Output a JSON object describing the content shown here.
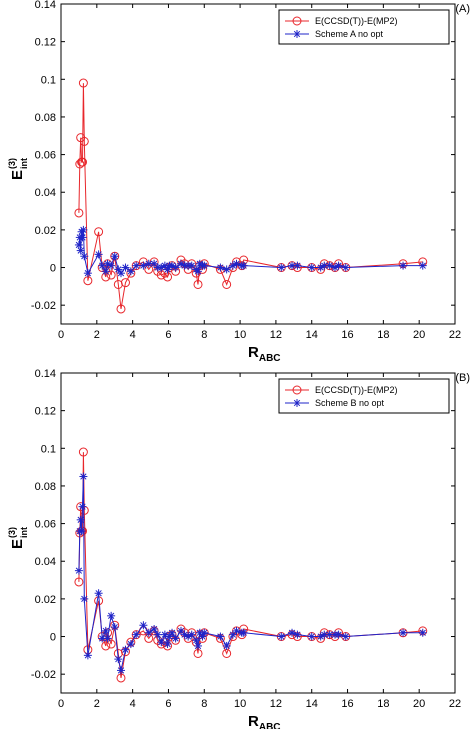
{
  "chart_data": [
    {
      "type": "line",
      "panel_label": "(A)",
      "xlabel": "R",
      "xlabel_sub": "ABC",
      "ylabel": "E",
      "ylabel_sup": "(3)",
      "ylabel_sub": "int",
      "xlim": [
        0,
        22
      ],
      "ylim": [
        -0.03,
        0.14
      ],
      "xticks": [
        0,
        2,
        4,
        6,
        8,
        10,
        12,
        14,
        16,
        18,
        20,
        22
      ],
      "yticks": [
        -0.02,
        0,
        0.02,
        0.04,
        0.06,
        0.08,
        0.1,
        0.12,
        0.14
      ],
      "xtick_labels": [
        "0",
        "2",
        "4",
        "6",
        "8",
        "10",
        "12",
        "14",
        "16",
        "18",
        "20",
        "22"
      ],
      "ytick_labels": [
        "-0.02",
        "0",
        "0.02",
        "0.04",
        "0.06",
        "0.08",
        "0.1",
        "0.12",
        "0.14"
      ],
      "grid": false,
      "legend_position": "top-right",
      "series": [
        {
          "name": "E(CCSD(T))-E(MP2)",
          "color": "#e8262b",
          "marker": "circle",
          "x": [
            1.0,
            1.05,
            1.1,
            1.15,
            1.2,
            1.25,
            1.3,
            1.5,
            2.1,
            2.3,
            2.5,
            2.6,
            2.8,
            3.0,
            3.2,
            3.35,
            3.6,
            3.9,
            4.2,
            4.6,
            4.9,
            5.2,
            5.4,
            5.6,
            5.8,
            5.95,
            6.05,
            6.2,
            6.4,
            6.7,
            6.9,
            7.1,
            7.3,
            7.55,
            7.65,
            7.75,
            7.9,
            8.0,
            8.9,
            9.25,
            9.6,
            9.8,
            10.1,
            10.2,
            12.3,
            12.9,
            13.2,
            14.0,
            14.5,
            14.7,
            15.0,
            15.3,
            15.5,
            15.9,
            19.1,
            20.2
          ],
          "y": [
            0.029,
            0.055,
            0.069,
            0.056,
            0.056,
            0.098,
            0.067,
            -0.007,
            0.019,
            0.0,
            -0.005,
            0.002,
            -0.004,
            0.006,
            -0.009,
            -0.022,
            -0.008,
            -0.003,
            0.001,
            0.003,
            -0.001,
            0.003,
            -0.002,
            -0.004,
            -0.003,
            -0.005,
            0.0,
            0.001,
            -0.002,
            0.004,
            0.002,
            -0.001,
            0.002,
            -0.003,
            -0.009,
            0.001,
            -0.001,
            0.002,
            -0.001,
            -0.009,
            0.0,
            0.003,
            0.001,
            0.004,
            0.0,
            0.001,
            0.0,
            0.0,
            -0.001,
            0.002,
            0.001,
            0.0,
            0.002,
            0.0,
            0.002,
            0.003
          ]
        },
        {
          "name": "Scheme A no opt",
          "color": "#1f24c8",
          "marker": "asterisk",
          "x": [
            1.0,
            1.05,
            1.1,
            1.15,
            1.2,
            1.25,
            1.3,
            1.5,
            2.1,
            2.3,
            2.5,
            2.6,
            2.8,
            3.0,
            3.2,
            3.35,
            3.6,
            3.9,
            4.2,
            4.6,
            4.9,
            5.2,
            5.4,
            5.6,
            5.8,
            5.95,
            6.05,
            6.2,
            6.4,
            6.7,
            6.9,
            7.1,
            7.3,
            7.55,
            7.65,
            7.75,
            7.9,
            8.0,
            8.9,
            9.25,
            9.6,
            9.8,
            10.1,
            10.2,
            12.3,
            12.9,
            13.2,
            14.0,
            14.5,
            14.7,
            15.0,
            15.3,
            15.5,
            15.9,
            19.1,
            20.2
          ],
          "y": [
            0.012,
            0.016,
            0.009,
            0.019,
            0.016,
            0.02,
            0.006,
            -0.003,
            0.007,
            0.001,
            -0.002,
            0.002,
            0.001,
            0.006,
            -0.001,
            -0.003,
            0.0,
            -0.002,
            0.001,
            0.001,
            0.002,
            0.002,
            0.0,
            0.0,
            0.001,
            -0.001,
            0.001,
            0.001,
            0.0,
            0.002,
            0.001,
            0.001,
            0.001,
            -0.001,
            -0.002,
            0.002,
            0.001,
            0.001,
            0.0,
            -0.001,
            0.001,
            0.002,
            0.001,
            0.001,
            0.0,
            0.001,
            0.001,
            0.0,
            0.0,
            0.001,
            0.001,
            0.0,
            0.001,
            0.0,
            0.001,
            0.001
          ]
        }
      ]
    },
    {
      "type": "line",
      "panel_label": "(B)",
      "xlabel": "R",
      "xlabel_sub": "ABC",
      "ylabel": "E",
      "ylabel_sup": "(3)",
      "ylabel_sub": "int",
      "xlim": [
        0,
        22
      ],
      "ylim": [
        -0.03,
        0.14
      ],
      "xticks": [
        0,
        2,
        4,
        6,
        8,
        10,
        12,
        14,
        16,
        18,
        20,
        22
      ],
      "yticks": [
        -0.02,
        0,
        0.02,
        0.04,
        0.06,
        0.08,
        0.1,
        0.12,
        0.14
      ],
      "xtick_labels": [
        "0",
        "2",
        "4",
        "6",
        "8",
        "10",
        "12",
        "14",
        "16",
        "18",
        "20",
        "22"
      ],
      "ytick_labels": [
        "-0.02",
        "0",
        "0.02",
        "0.04",
        "0.06",
        "0.08",
        "0.1",
        "0.12",
        "0.14"
      ],
      "grid": false,
      "legend_position": "top-right",
      "series": [
        {
          "name": "E(CCSD(T))-E(MP2)",
          "color": "#e8262b",
          "marker": "circle",
          "x": [
            1.0,
            1.05,
            1.1,
            1.15,
            1.2,
            1.25,
            1.3,
            1.5,
            2.1,
            2.3,
            2.5,
            2.6,
            2.8,
            3.0,
            3.2,
            3.35,
            3.6,
            3.9,
            4.2,
            4.6,
            4.9,
            5.2,
            5.4,
            5.6,
            5.8,
            5.95,
            6.05,
            6.2,
            6.4,
            6.7,
            6.9,
            7.1,
            7.3,
            7.55,
            7.65,
            7.75,
            7.9,
            8.0,
            8.9,
            9.25,
            9.6,
            9.8,
            10.1,
            10.2,
            12.3,
            12.9,
            13.2,
            14.0,
            14.5,
            14.7,
            15.0,
            15.3,
            15.5,
            15.9,
            19.1,
            20.2
          ],
          "y": [
            0.029,
            0.055,
            0.069,
            0.056,
            0.056,
            0.098,
            0.067,
            -0.007,
            0.019,
            0.0,
            -0.005,
            0.002,
            -0.004,
            0.006,
            -0.009,
            -0.022,
            -0.008,
            -0.003,
            0.001,
            0.003,
            -0.001,
            0.003,
            -0.002,
            -0.004,
            -0.003,
            -0.005,
            0.0,
            0.001,
            -0.002,
            0.004,
            0.002,
            -0.001,
            0.002,
            -0.003,
            -0.009,
            0.001,
            -0.001,
            0.002,
            -0.001,
            -0.009,
            0.0,
            0.003,
            0.001,
            0.004,
            0.0,
            0.001,
            0.0,
            0.0,
            -0.001,
            0.002,
            0.001,
            0.0,
            0.002,
            0.0,
            0.002,
            0.003
          ]
        },
        {
          "name": "Scheme B no opt",
          "color": "#1f24c8",
          "marker": "asterisk",
          "x": [
            1.0,
            1.05,
            1.1,
            1.15,
            1.2,
            1.25,
            1.3,
            1.5,
            2.1,
            2.3,
            2.5,
            2.6,
            2.8,
            3.0,
            3.2,
            3.35,
            3.6,
            3.9,
            4.2,
            4.6,
            4.9,
            5.2,
            5.4,
            5.6,
            5.8,
            5.95,
            6.05,
            6.2,
            6.4,
            6.7,
            6.9,
            7.1,
            7.3,
            7.55,
            7.65,
            7.75,
            7.9,
            8.0,
            8.9,
            9.25,
            9.6,
            9.8,
            10.1,
            10.2,
            12.3,
            12.9,
            13.2,
            14.0,
            14.5,
            14.7,
            15.0,
            15.3,
            15.5,
            15.9,
            19.1,
            20.2
          ],
          "y": [
            0.035,
            0.056,
            0.062,
            0.056,
            0.069,
            0.085,
            0.02,
            -0.01,
            0.023,
            -0.001,
            0.003,
            -0.001,
            0.011,
            0.005,
            -0.012,
            -0.018,
            -0.007,
            -0.004,
            0.001,
            0.006,
            0.002,
            0.004,
            0.001,
            -0.003,
            0.001,
            -0.004,
            0.0,
            0.002,
            -0.001,
            0.003,
            0.001,
            0.0,
            0.001,
            -0.002,
            -0.005,
            0.002,
            0.0,
            0.002,
            0.0,
            -0.005,
            0.001,
            0.003,
            0.002,
            0.002,
            0.0,
            0.002,
            0.001,
            0.0,
            0.0,
            0.001,
            0.001,
            0.001,
            0.001,
            0.0,
            0.002,
            0.002
          ]
        }
      ]
    }
  ]
}
